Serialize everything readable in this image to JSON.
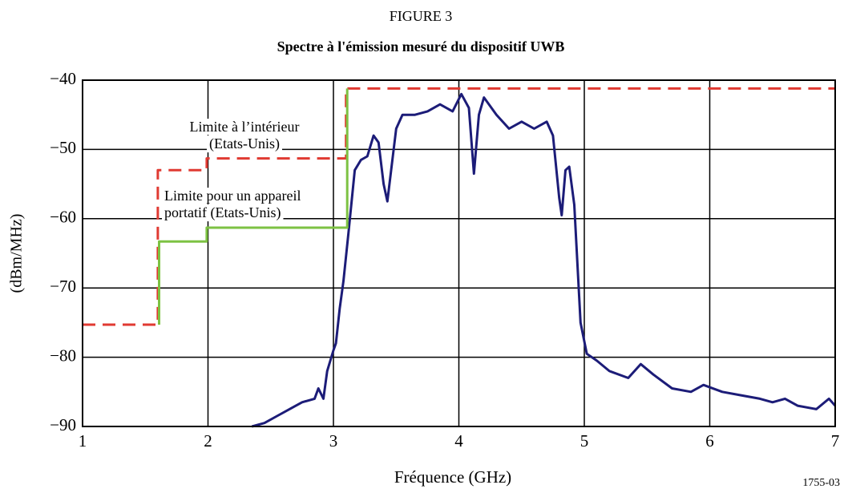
{
  "chart_data": {
    "type": "line",
    "title": "FIGURE 3",
    "subtitle": "Spectre à l'émission mesuré du dispositif UWB",
    "xlabel": "Fréquence (GHz)",
    "ylabel": "(dBm/MHz)",
    "note": "1755-03",
    "annotations": [
      {
        "lines": [
          "Limite à l’intérieur",
          "(Etats-Unis)"
        ]
      },
      {
        "lines": [
          "Limite pour un appareil",
          "portatif (Etats-Unis)"
        ]
      }
    ],
    "xlim": [
      1,
      7
    ],
    "xticks": [
      1,
      2,
      3,
      4,
      5,
      6,
      7
    ],
    "ylim": [
      -90,
      -40
    ],
    "yticks": [
      {
        "value": -40,
        "label": "−40"
      },
      {
        "value": -50,
        "label": "−50"
      },
      {
        "value": -60,
        "label": "−60"
      },
      {
        "value": -70,
        "label": "−70"
      },
      {
        "value": -80,
        "label": "−80"
      },
      {
        "value": -90,
        "label": "−90"
      }
    ],
    "grid": true,
    "series": [
      {
        "color": "#1c1c78",
        "dash": "solid",
        "x": [
          2.35,
          2.45,
          2.55,
          2.65,
          2.75,
          2.85,
          2.88,
          2.92,
          2.95,
          3.0,
          3.02,
          3.05,
          3.08,
          3.12,
          3.17,
          3.22,
          3.27,
          3.32,
          3.36,
          3.4,
          3.43,
          3.46,
          3.5,
          3.55,
          3.65,
          3.75,
          3.85,
          3.95,
          4.02,
          4.08,
          4.12,
          4.16,
          4.2,
          4.3,
          4.4,
          4.5,
          4.6,
          4.7,
          4.75,
          4.8,
          4.82,
          4.85,
          4.88,
          4.92,
          4.97,
          5.02,
          5.1,
          5.2,
          5.35,
          5.45,
          5.55,
          5.7,
          5.85,
          5.95,
          6.1,
          6.25,
          6.4,
          6.5,
          6.6,
          6.7,
          6.85,
          6.95,
          7.0
        ],
        "values": [
          -90,
          -89.5,
          -88.5,
          -87.5,
          -86.5,
          -86,
          -84.5,
          -86,
          -82,
          -79,
          -78,
          -73,
          -69,
          -62,
          -53,
          -51.5,
          -51,
          -48,
          -49,
          -55,
          -57.5,
          -53,
          -47,
          -45,
          -45,
          -44.5,
          -43.5,
          -44.5,
          -42,
          -44,
          -53.5,
          -45,
          -42.5,
          -45,
          -47,
          -46,
          -47,
          -46,
          -48,
          -57,
          -59.5,
          -53,
          -52.5,
          -58,
          -75,
          -79.5,
          -80.5,
          -82,
          -83,
          -81,
          -82.5,
          -84.5,
          -85,
          -84,
          -85,
          -85.5,
          -86,
          -86.5,
          -86,
          -87,
          -87.5,
          -86,
          -87
        ]
      },
      {
        "color": "#e03a32",
        "dash": "dashed",
        "x": [
          1,
          1.6,
          1.6,
          1.99,
          1.99,
          3.1,
          3.1,
          7
        ],
        "values": [
          -75.3,
          -75.3,
          -53,
          -53,
          -51.3,
          -51.3,
          -41.2,
          -41.2
        ]
      },
      {
        "color": "#7dc243",
        "dash": "solid",
        "x": [
          1.61,
          1.61,
          1.99,
          1.99,
          3.11,
          3.11
        ],
        "values": [
          -75.3,
          -63.3,
          -63.3,
          -61.3,
          -61.3,
          -41.2
        ]
      }
    ]
  }
}
